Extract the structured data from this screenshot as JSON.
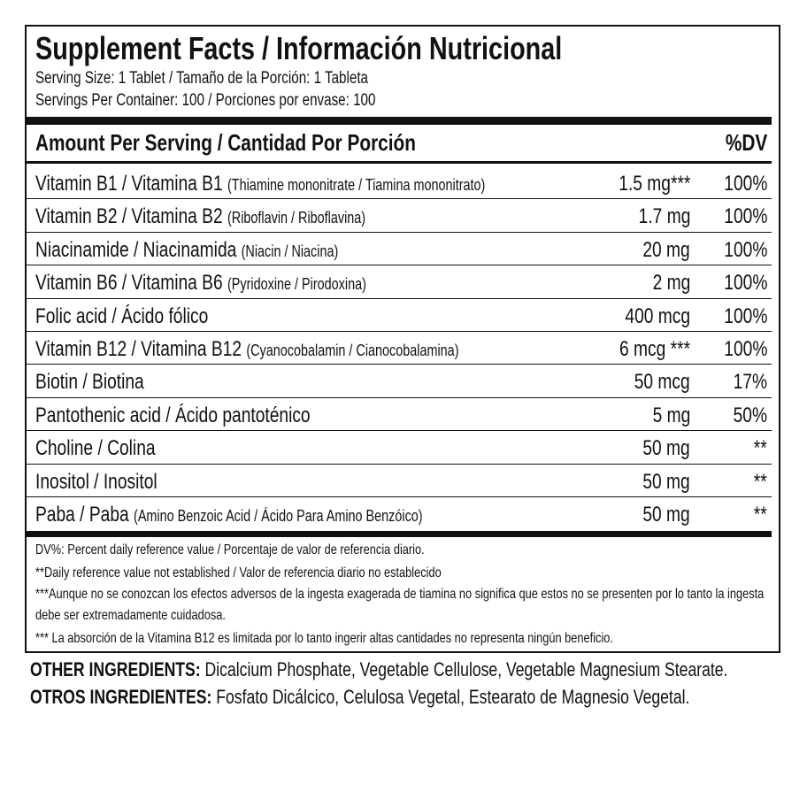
{
  "header": {
    "title": "Supplement Facts / Información Nutricional",
    "serving_size": "Serving Size: 1 Tablet / Tamaño de la Porción: 1 Tableta",
    "servings_per_container": "Servings Per Container: 100 / Porciones por envase: 100"
  },
  "table": {
    "columns": [
      "Amount Per Serving / Cantidad Por Porción",
      "%DV"
    ],
    "rows": [
      {
        "name": "Vitamin B1 / Vitamina B1",
        "detail": "(Thiamine mononitrate / Tiamina mononitrato)",
        "amount": "1.5 mg***",
        "dv": "100%"
      },
      {
        "name": "Vitamin B2 / Vitamina B2",
        "detail": "(Riboflavin / Riboflavina)",
        "amount": "1.7 mg",
        "dv": "100%"
      },
      {
        "name": "Niacinamide / Niacinamida",
        "detail": "(Niacin / Niacina)",
        "amount": "20 mg",
        "dv": "100%"
      },
      {
        "name": "Vitamin B6 / Vitamina B6",
        "detail": "(Pyridoxine / Pirodoxina)",
        "amount": "2 mg",
        "dv": "100%"
      },
      {
        "name": "Folic acid / Ácido fólico",
        "amount": "400 mcg",
        "dv": "100%"
      },
      {
        "name": "Vitamin B12 / Vitamina B12",
        "detail": "(Cyanocobalamin / Cianocobalamina)",
        "amount": "6 mcg ***",
        "dv": "100%"
      },
      {
        "name": "Biotin / Biotina",
        "amount": "50 mcg",
        "dv": "17%"
      },
      {
        "name": "Pantothenic acid / Ácido pantoténico",
        "amount": "5 mg",
        "dv": "50%"
      },
      {
        "name": "Choline / Colina",
        "amount": "50 mg",
        "dv": "**"
      },
      {
        "name": "Inositol / Inositol",
        "amount": "50 mg",
        "dv": "**"
      },
      {
        "name": "Paba / Paba",
        "detail": "(Amino Benzoic Acid / Ácido Para Amino Benzóico)",
        "amount": "50 mg",
        "dv": "**"
      }
    ]
  },
  "footnotes": [
    "DV%: Percent daily reference value / Porcentaje de valor de referencia diario.",
    "**Daily reference value not established /  Valor de referencia diario no establecido",
    "***Aunque no se conozcan los efectos adversos de la ingesta exagerada de tiamina no significa que estos no se presenten por lo tanto la ingesta debe ser extremadamente cuidadosa.",
    "*** La absorción de la Vitamina B12 es limitada por lo tanto ingerir altas cantidades no representa ningún beneficio."
  ],
  "other_ingredients": [
    {
      "label": "OTHER INGREDIENTS:",
      "text": "Dicalcium Phosphate, Vegetable Cellulose, Vegetable Magnesium Stearate."
    },
    {
      "label": "OTROS INGREDIENTES:",
      "text": "Fosfato Dicálcico, Celulosa Vegetal, Estearato de Magnesio Vegetal."
    }
  ]
}
